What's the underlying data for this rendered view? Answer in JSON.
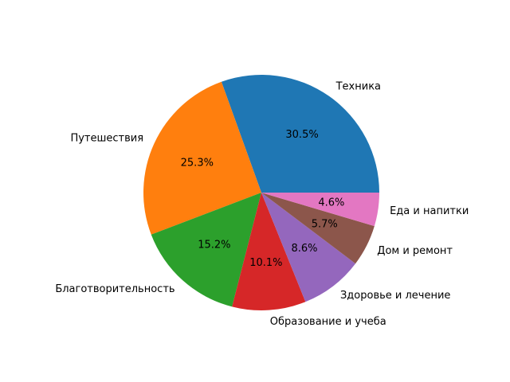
{
  "chart_data": {
    "type": "pie",
    "categories": [
      "Техника",
      "Путешествия",
      "Благотворительность",
      "Образование и учеба",
      "Здоровье и лечение",
      "Дом и ремонт",
      "Еда и напитки"
    ],
    "values": [
      30.5,
      25.3,
      15.2,
      10.1,
      8.6,
      5.7,
      4.6
    ],
    "value_labels": [
      "30.5%",
      "25.3%",
      "15.2%",
      "10.1%",
      "8.6%",
      "5.7%",
      "4.6%"
    ],
    "colors": [
      "#1f77b4",
      "#ff7f0e",
      "#2ca02c",
      "#d62728",
      "#9467bd",
      "#8c564b",
      "#e377c2"
    ]
  }
}
